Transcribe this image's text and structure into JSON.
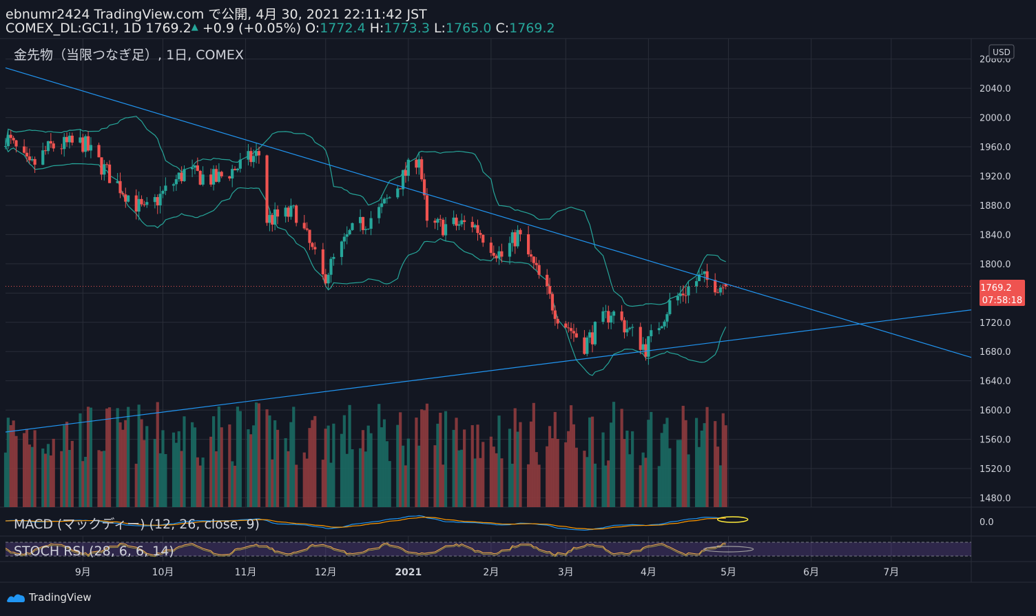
{
  "header": {
    "line1": "ebnumr2424 TradingView.com で公開, 4月 30, 2021 22:11:42 JST",
    "symbol": "COMEX_DL:GC1!, 1D 1769.2",
    "change": "+0.9 (+0.05%)",
    "o_label": "O:",
    "o": "1772.4",
    "h_label": "H:",
    "h": "1773.3",
    "l_label": "L:",
    "l": "1765.0",
    "c_label": "C:",
    "c": "1769.2"
  },
  "chart_title": "金先物（当限つなぎ足）, 1日, COMEX",
  "currency": "USD",
  "price_label": "1769.2",
  "countdown": "07:58:18",
  "macd_label": "MACD (マックディー) (12, 26, close, 9)",
  "macd_tick": "0.0",
  "stoch_label": "STOCH RSI (28, 6, 6, 14)",
  "brand": "TradingView",
  "colors": {
    "up": "#26a69a",
    "down": "#ef5350",
    "trend": "#2196f3",
    "band": "#26a69a",
    "bg": "#131722"
  },
  "chart_data": {
    "type": "candlestick",
    "y_ticks": [
      "2080.0",
      "2040.0",
      "2000.0",
      "1960.0",
      "1920.0",
      "1880.0",
      "1840.0",
      "1800.0",
      "1760.0",
      "1720.0",
      "1680.0",
      "1640.0",
      "1600.0",
      "1560.0",
      "1520.0",
      "1480.0"
    ],
    "ylim": [
      1470,
      2090
    ],
    "x_ticks": [
      "9月",
      "10月",
      "11月",
      "12月",
      "2021",
      "2月",
      "3月",
      "4月",
      "5月",
      "6月",
      "7月"
    ],
    "last_price": 1769.2,
    "monthly_closes_approx": [
      {
        "month": "2020-08",
        "close": 1970
      },
      {
        "month": "2020-09",
        "close": 1887
      },
      {
        "month": "2020-10",
        "close": 1880
      },
      {
        "month": "2020-11",
        "close": 1780
      },
      {
        "month": "2020-12",
        "close": 1895
      },
      {
        "month": "2021-01",
        "close": 1850
      },
      {
        "month": "2021-02",
        "close": 1730
      },
      {
        "month": "2021-03",
        "close": 1715
      },
      {
        "month": "2021-04",
        "close": 1769
      }
    ],
    "trendlines": [
      {
        "name": "descending",
        "from": [
          "2020-08-03",
          2068
        ],
        "to": [
          "2021-07-31",
          1672
        ]
      },
      {
        "name": "ascending",
        "from": [
          "2020-08-03",
          1570
        ],
        "to": [
          "2021-07-31",
          1737
        ]
      }
    ]
  }
}
